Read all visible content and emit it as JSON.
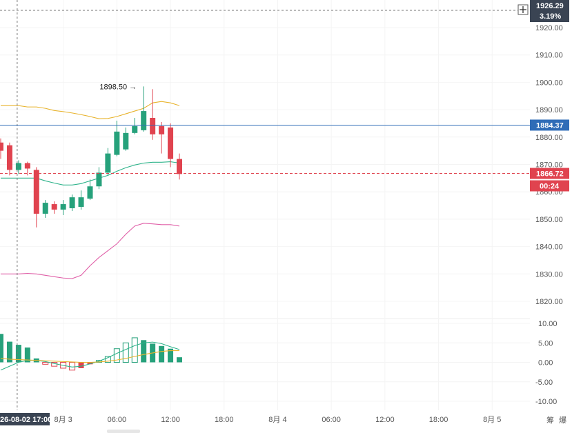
{
  "crosshair": {
    "price": "1926.29",
    "change": "3.19%",
    "time_label": "26-08-02 17:00"
  },
  "chart_data": [
    {
      "type": "candlestick",
      "panel": "price",
      "ylim": [
        1814,
        1927
      ],
      "y_ticks": [
        "1920.00",
        "1910.00",
        "1900.00",
        "1890.00",
        "1880.00",
        "1870.00",
        "1860.00",
        "1850.00",
        "1840.00",
        "1830.00",
        "1820.00"
      ],
      "y_tick_values": [
        1920,
        1910,
        1900,
        1890,
        1880,
        1870,
        1860,
        1850,
        1840,
        1830,
        1820
      ],
      "candles": [
        {
          "o": 1878.0,
          "h": 1879.5,
          "l": 1872.0,
          "c": 1875.0
        },
        {
          "o": 1877.0,
          "h": 1878.0,
          "l": 1866.0,
          "c": 1868.0
        },
        {
          "o": 1868.0,
          "h": 1871.5,
          "l": 1866.5,
          "c": 1870.5
        },
        {
          "o": 1870.5,
          "h": 1871.0,
          "l": 1866.0,
          "c": 1868.5
        },
        {
          "o": 1868.0,
          "h": 1869.0,
          "l": 1847.0,
          "c": 1852.0
        },
        {
          "o": 1852.0,
          "h": 1857.0,
          "l": 1850.5,
          "c": 1856.0
        },
        {
          "o": 1855.5,
          "h": 1856.5,
          "l": 1852.0,
          "c": 1853.5
        },
        {
          "o": 1853.5,
          "h": 1857.0,
          "l": 1851.5,
          "c": 1855.5
        },
        {
          "o": 1854.0,
          "h": 1859.0,
          "l": 1853.0,
          "c": 1858.0
        },
        {
          "o": 1854.5,
          "h": 1860.5,
          "l": 1853.5,
          "c": 1858.0
        },
        {
          "o": 1857.5,
          "h": 1864.5,
          "l": 1857.0,
          "c": 1862.0
        },
        {
          "o": 1862.0,
          "h": 1869.0,
          "l": 1861.0,
          "c": 1867.0
        },
        {
          "o": 1867.0,
          "h": 1876.0,
          "l": 1866.0,
          "c": 1874.0
        },
        {
          "o": 1873.5,
          "h": 1886.0,
          "l": 1873.0,
          "c": 1882.0
        },
        {
          "o": 1875.5,
          "h": 1883.5,
          "l": 1875.0,
          "c": 1881.5
        },
        {
          "o": 1881.5,
          "h": 1887.0,
          "l": 1881.0,
          "c": 1884.0
        },
        {
          "o": 1882.5,
          "h": 1898.5,
          "l": 1882.0,
          "c": 1889.5
        },
        {
          "o": 1887.0,
          "h": 1897.5,
          "l": 1879.0,
          "c": 1881.0
        },
        {
          "o": 1884.0,
          "h": 1885.5,
          "l": 1874.0,
          "c": 1881.0
        },
        {
          "o": 1883.5,
          "h": 1885.0,
          "l": 1869.0,
          "c": 1872.0
        },
        {
          "o": 1872.0,
          "h": 1874.0,
          "l": 1864.5,
          "c": 1866.5
        }
      ],
      "bands": {
        "upper": [
          1891.5,
          1891.5,
          1891.5,
          1891.0,
          1891.0,
          1890.5,
          1889.7,
          1889.3,
          1888.8,
          1888.2,
          1887.5,
          1886.7,
          1886.8,
          1887.5,
          1888.5,
          1889.5,
          1890.5,
          1892.5,
          1893.0,
          1892.5,
          1891.5
        ],
        "middle": [
          1865.0,
          1865.0,
          1865.0,
          1865.0,
          1865.0,
          1864.0,
          1863.2,
          1862.5,
          1862.5,
          1863.0,
          1864.0,
          1865.0,
          1866.0,
          1867.5,
          1868.8,
          1869.8,
          1870.5,
          1870.8,
          1870.8,
          1871.0,
          1870.5
        ],
        "lower": [
          1830.0,
          1830.0,
          1830.0,
          1830.2,
          1830.0,
          1829.5,
          1829.0,
          1828.5,
          1828.3,
          1829.5,
          1833.0,
          1836.0,
          1838.5,
          1841.0,
          1844.5,
          1847.5,
          1848.5,
          1848.3,
          1848.0,
          1848.0,
          1847.5
        ]
      },
      "peak_label": "1898.50",
      "price_lines": [
        {
          "value": 1884.37,
          "label": "1884.37",
          "color": "#2f6cb7",
          "style": "solid"
        },
        {
          "value": 1866.72,
          "label": "1866.72",
          "color": "#e0434f",
          "style": "dashed",
          "timer": "00:24"
        }
      ]
    },
    {
      "type": "bar",
      "panel": "macd",
      "ylim": [
        -11,
        11
      ],
      "y_ticks": [
        "10.00",
        "5.00",
        "0.00",
        "-5.00",
        "-10.00"
      ],
      "y_tick_values": [
        10,
        5,
        0,
        -5,
        -10
      ],
      "histogram": [
        7.3,
        5.3,
        4.5,
        3.8,
        1.0,
        -0.5,
        -1.0,
        -1.5,
        -2.0,
        -1.5,
        -0.5,
        0.5,
        1.5,
        3.5,
        5.0,
        6.3,
        5.7,
        4.8,
        4.2,
        3.5,
        1.3
      ],
      "hist_style": [
        "solid",
        "solid",
        "solid",
        "solid",
        "solid",
        "hollow",
        "hollow",
        "hollow",
        "hollow",
        "solid",
        "solid",
        "hollow",
        "hollow",
        "hollow",
        "hollow",
        "hollow",
        "solid",
        "solid",
        "solid",
        "solid",
        "solid"
      ],
      "dif": [
        -2.0,
        -1.0,
        0.0,
        0.5,
        0.5,
        0.2,
        -0.3,
        -0.8,
        -1.2,
        -1.0,
        -0.4,
        0.3,
        1.2,
        2.3,
        3.3,
        4.3,
        5.0,
        5.2,
        4.8,
        4.0,
        3.3
      ],
      "dea": [
        1.0,
        0.8,
        0.7,
        0.6,
        0.5,
        0.4,
        0.3,
        0.2,
        0.1,
        0.0,
        0.0,
        0.1,
        0.3,
        0.6,
        1.0,
        1.5,
        2.0,
        2.4,
        2.8,
        3.0,
        3.0
      ]
    }
  ],
  "x_axis": {
    "labels": [
      "8月 3",
      "06:00",
      "12:00",
      "18:00",
      "8月 4",
      "06:00",
      "12:00",
      "18:00",
      "8月 5"
    ],
    "hours": [
      7,
      13,
      19,
      25,
      31,
      37,
      43,
      49,
      55
    ]
  },
  "corner_labels": [
    "筹",
    "爆"
  ],
  "colors": {
    "up": "#26a17b",
    "down": "#e0434f",
    "upper_band": "#e8b32c",
    "middle_band": "#2db38a",
    "lower_band": "#e060a8",
    "price_line": "#2f6cb7",
    "crosshair": "#777777",
    "dark_badge": "#3a4453"
  },
  "icons": {
    "crosshair_add": "plus-icon",
    "side_collapse": "chevron-right-icon"
  }
}
